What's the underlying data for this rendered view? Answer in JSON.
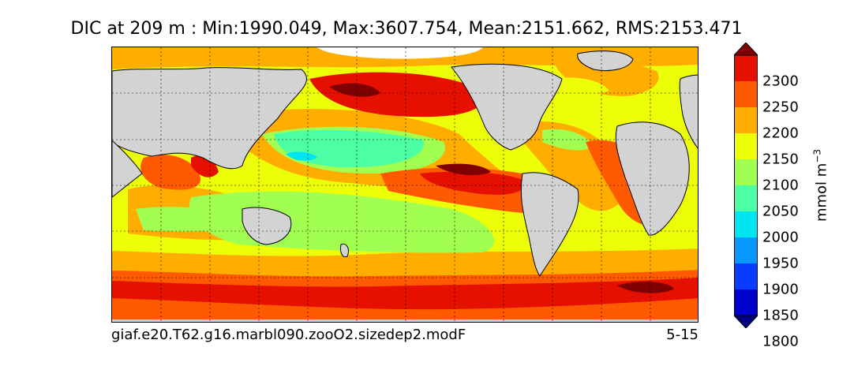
{
  "title": "DIC at 209 m : Min:1990.049, Max:3607.754, Mean:2151.662, RMS:2153.471",
  "case_name": "giaf.e20.T62.g16.marbl090.zooO2.sizedep2.modF",
  "period": "5-15",
  "colorbar": {
    "unit_label": "mmol m",
    "unit_exponent": "−3",
    "ticks": [
      "2300",
      "2250",
      "2200",
      "2150",
      "2100",
      "2050",
      "2000",
      "1950",
      "1900",
      "1850",
      "1800"
    ],
    "levels": [
      {
        "range": "<1800",
        "color": "#00007f"
      },
      {
        "range": "1800-1850",
        "color": "#0000cd"
      },
      {
        "range": "1850-1900",
        "color": "#0a3cff"
      },
      {
        "range": "1900-1950",
        "color": "#0896ff"
      },
      {
        "range": "1950-2000",
        "color": "#00e6f0"
      },
      {
        "range": "2000-2050",
        "color": "#4dffa4"
      },
      {
        "range": "2050-2100",
        "color": "#a0ff50"
      },
      {
        "range": "2100-2150",
        "color": "#ecff08"
      },
      {
        "range": "2150-2200",
        "color": "#ffae00"
      },
      {
        "range": "2200-2250",
        "color": "#ff5a00"
      },
      {
        "range": "2250-2300",
        "color": "#e51000"
      },
      {
        "range": ">2300",
        "color": "#7f0000"
      }
    ]
  },
  "colors": {
    "land": "#d3d3d3",
    "ice": "#ffffff"
  }
}
